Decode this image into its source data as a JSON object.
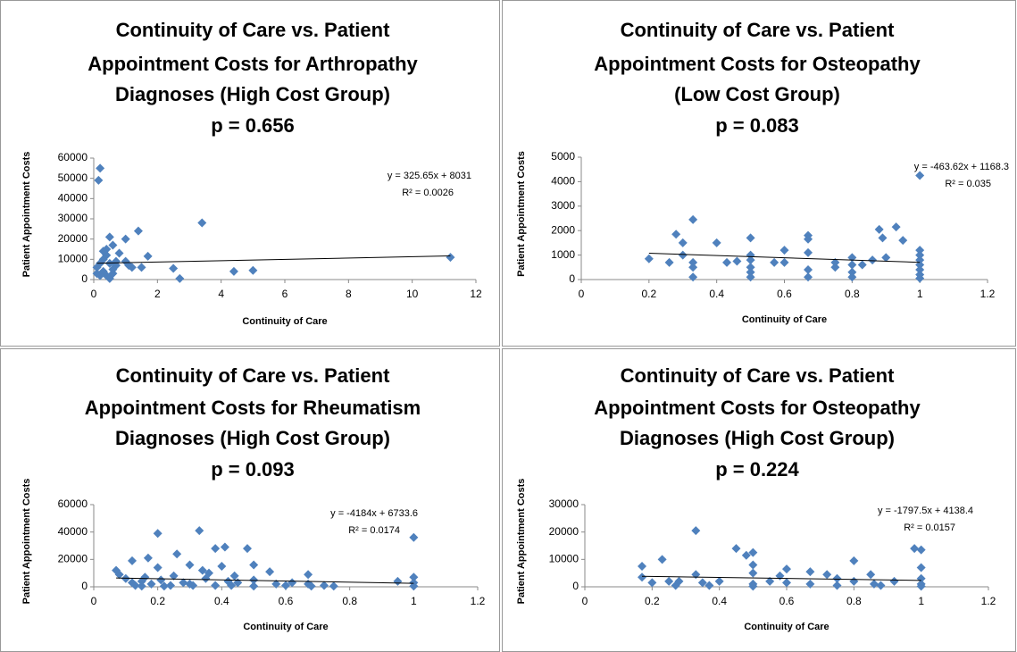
{
  "chart_data": [
    {
      "type": "scatter",
      "title": [
        "Continuity of Care vs. Patient",
        "Appointment Costs for Arthropathy",
        "Diagnoses (High Cost Group)",
        "p = 0.656"
      ],
      "xlabel": "Continuity of Care",
      "ylabel": "Patient Appointment Costs",
      "color": "#4f81bd",
      "x": [
        0.2,
        0.15,
        0.5,
        0.6,
        0.4,
        1.0,
        1.4,
        3.4,
        11.2,
        5.0,
        4.4,
        2.5,
        2.7,
        1.7,
        1.5,
        1.2,
        1.0,
        0.8,
        0.7,
        0.3,
        0.2,
        0.1,
        0.3,
        0.4,
        0.5,
        0.6,
        0.7,
        0.2,
        0.4,
        0.6,
        1.1,
        0.1,
        0.5,
        0.3
      ],
      "values": [
        55000,
        49000,
        21000,
        17000,
        15000,
        20000,
        24000,
        28000,
        11000,
        4500,
        4000,
        5500,
        500,
        11500,
        6000,
        6000,
        9000,
        13000,
        9000,
        10000,
        8000,
        6000,
        4000,
        2000,
        500,
        3000,
        7000,
        2000,
        12000,
        5000,
        7000,
        3000,
        8000,
        14000
      ],
      "xlim": [
        0,
        12
      ],
      "xticks": [
        0,
        2,
        4,
        6,
        8,
        10,
        12
      ],
      "ylim": [
        0,
        60000
      ],
      "yticks": [
        0,
        10000,
        20000,
        30000,
        40000,
        50000,
        60000
      ],
      "trendline": {
        "slope": 325.65,
        "intercept": 8031,
        "label": "y = 325.65x + 8031",
        "r2_label": "R² = 0.0026"
      }
    },
    {
      "type": "scatter",
      "title": [
        "Continuity of Care vs. Patient",
        "Appointment Costs for Osteopathy",
        "(Low Cost Group)",
        "p = 0.083"
      ],
      "xlabel": "Continuity of Care",
      "ylabel": "Patient Appointment Costs",
      "color": "#4f81bd",
      "x": [
        0.2,
        0.26,
        0.28,
        0.3,
        0.3,
        0.33,
        0.33,
        0.33,
        0.33,
        0.4,
        0.43,
        0.46,
        0.5,
        0.5,
        0.5,
        0.5,
        0.5,
        0.5,
        0.57,
        0.6,
        0.6,
        0.67,
        0.67,
        0.67,
        0.67,
        0.67,
        0.75,
        0.75,
        0.8,
        0.8,
        0.8,
        0.8,
        0.83,
        0.86,
        0.88,
        0.89,
        0.9,
        0.93,
        0.95,
        1,
        1,
        1,
        1,
        1,
        1,
        1,
        1
      ],
      "values": [
        850,
        700,
        1850,
        1500,
        1000,
        2450,
        700,
        500,
        100,
        1500,
        700,
        750,
        1700,
        1000,
        800,
        500,
        300,
        100,
        700,
        1200,
        700,
        1800,
        1650,
        1100,
        400,
        100,
        700,
        500,
        900,
        600,
        300,
        100,
        600,
        800,
        2050,
        1700,
        900,
        2150,
        1600,
        4250,
        1200,
        1000,
        800,
        600,
        400,
        200,
        50
      ],
      "xlim": [
        0,
        1.2
      ],
      "xticks": [
        0,
        0.2,
        0.4,
        0.6,
        0.8,
        1,
        1.2
      ],
      "ylim": [
        0,
        5000
      ],
      "yticks": [
        0,
        1000,
        2000,
        3000,
        4000,
        5000
      ],
      "trendline": {
        "slope": -463.62,
        "intercept": 1168.3,
        "label": "y = -463.62x + 1168.3",
        "r2_label": "R² = 0.035"
      }
    },
    {
      "type": "scatter",
      "title": [
        "Continuity of Care vs. Patient",
        "Appointment Costs for Rheumatism",
        "Diagnoses (High Cost Group)",
        "p = 0.093"
      ],
      "xlabel": "Continuity of Care",
      "ylabel": "Patient Appointment Costs",
      "color": "#4f81bd",
      "x": [
        0.07,
        0.08,
        0.1,
        0.12,
        0.12,
        0.13,
        0.15,
        0.16,
        0.17,
        0.18,
        0.2,
        0.2,
        0.21,
        0.22,
        0.25,
        0.26,
        0.28,
        0.3,
        0.31,
        0.33,
        0.34,
        0.35,
        0.36,
        0.38,
        0.4,
        0.41,
        0.42,
        0.43,
        0.45,
        0.48,
        0.5,
        0.5,
        0.5,
        0.55,
        0.57,
        0.6,
        0.62,
        0.67,
        0.67,
        0.68,
        0.72,
        0.75,
        0.95,
        1,
        1,
        1,
        1,
        0.24,
        0.15,
        0.3,
        0.38,
        0.44
      ],
      "values": [
        12000,
        9000,
        6000,
        19000,
        3000,
        1000,
        4000,
        7000,
        21000,
        2000,
        39000,
        14000,
        5000,
        500,
        8000,
        24000,
        3000,
        16000,
        1000,
        41000,
        12000,
        6000,
        10000,
        28000,
        15000,
        29000,
        4000,
        1000,
        3000,
        28000,
        16000,
        5000,
        500,
        11000,
        2000,
        1000,
        3000,
        9000,
        2000,
        500,
        1000,
        500,
        4000,
        36000,
        7000,
        3000,
        500,
        1000,
        500,
        2000,
        1000,
        8000
      ],
      "xlim": [
        0,
        1.2
      ],
      "xticks": [
        0,
        0.2,
        0.4,
        0.6,
        0.8,
        1,
        1.2
      ],
      "ylim": [
        0,
        60000
      ],
      "yticks": [
        0,
        20000,
        40000,
        60000
      ],
      "trendline": {
        "slope": -4184,
        "intercept": 6733.6,
        "label": "y = -4184x + 6733.6",
        "r2_label": "R² = 0.0174"
      }
    },
    {
      "type": "scatter",
      "title": [
        "Continuity of Care vs. Patient",
        "Appointment Costs for Osteopathy",
        "Diagnoses (High Cost Group)",
        "p = 0.224"
      ],
      "xlabel": "Continuity of Care",
      "ylabel": "Patient Appointment Costs",
      "color": "#4f81bd",
      "x": [
        0.17,
        0.17,
        0.2,
        0.23,
        0.25,
        0.27,
        0.28,
        0.33,
        0.33,
        0.35,
        0.37,
        0.4,
        0.45,
        0.48,
        0.5,
        0.5,
        0.5,
        0.5,
        0.5,
        0.55,
        0.58,
        0.6,
        0.6,
        0.67,
        0.67,
        0.72,
        0.75,
        0.75,
        0.8,
        0.8,
        0.85,
        0.86,
        0.88,
        0.92,
        0.98,
        1,
        1,
        1,
        1,
        1
      ],
      "values": [
        7500,
        3500,
        1500,
        10000,
        2000,
        500,
        2000,
        20500,
        4500,
        1500,
        500,
        2000,
        14000,
        11500,
        12500,
        8000,
        5000,
        1000,
        200,
        2000,
        4000,
        6500,
        1500,
        5500,
        1000,
        4500,
        3000,
        500,
        9500,
        2000,
        4500,
        1000,
        500,
        2000,
        14000,
        13500,
        7000,
        3000,
        1000,
        200
      ],
      "xlim": [
        0,
        1.2
      ],
      "xticks": [
        0,
        0.2,
        0.4,
        0.6,
        0.8,
        1,
        1.2
      ],
      "ylim": [
        0,
        30000
      ],
      "yticks": [
        0,
        10000,
        20000,
        30000
      ],
      "trendline": {
        "slope": -1797.5,
        "intercept": 4138.4,
        "label": "y = -1797.5x + 4138.4",
        "r2_label": "R² = 0.0157"
      }
    }
  ]
}
